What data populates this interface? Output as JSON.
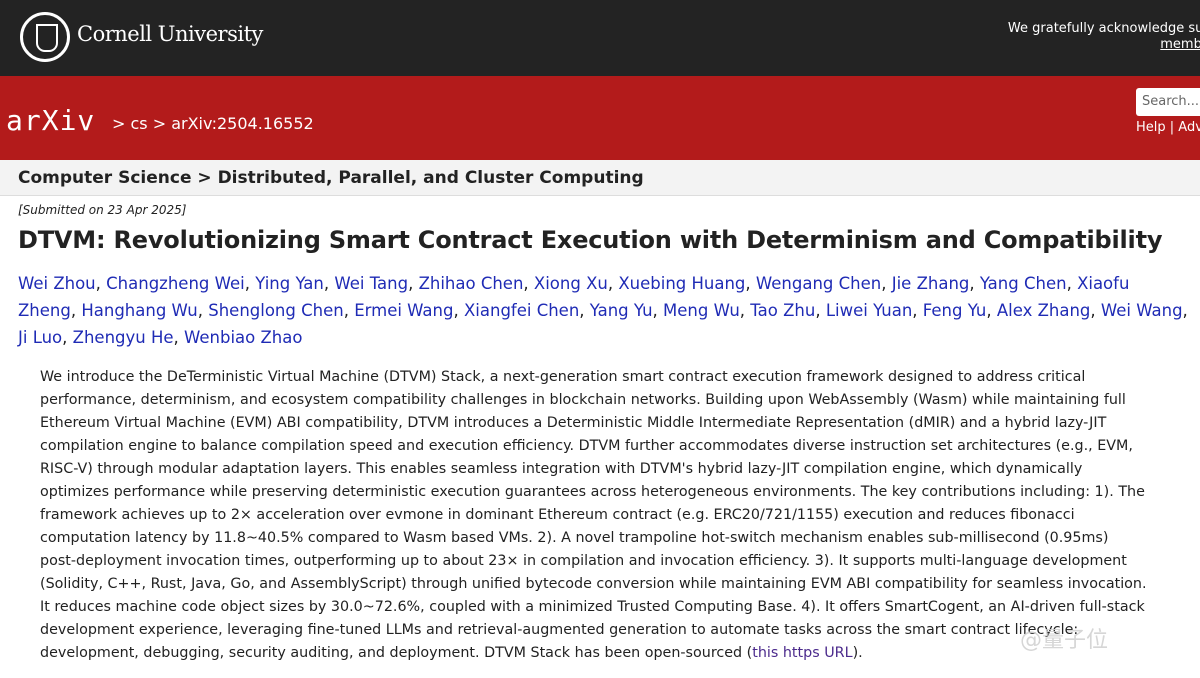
{
  "header": {
    "university": "Cornell University",
    "ack_line1": "We gratefully acknowledge support fro",
    "ack_link": "member institu"
  },
  "nav": {
    "logo": "arXiv",
    "breadcrumb": "> cs > arXiv:2504.16552",
    "search_placeholder": "Search...",
    "help": "Help | Adv"
  },
  "subject": "Computer Science > Distributed, Parallel, and Cluster Computing",
  "submitted": "[Submitted on 23 Apr 2025]",
  "title": "DTVM: Revolutionizing Smart Contract Execution with Determinism and Compatibility",
  "authors": [
    "Wei Zhou",
    "Changzheng Wei",
    "Ying Yan",
    "Wei Tang",
    "Zhihao Chen",
    "Xiong Xu",
    "Xuebing Huang",
    "Wengang Chen",
    "Jie Zhang",
    "Yang Chen",
    "Xiaofu Zheng",
    "Hanghang Wu",
    "Shenglong Chen",
    "Ermei Wang",
    "Xiangfei Chen",
    "Yang Yu",
    "Meng Wu",
    "Tao Zhu",
    "Liwei Yuan",
    "Feng Yu",
    "Alex Zhang",
    "Wei Wang",
    "Ji Luo",
    "Zhengyu He",
    "Wenbiao Zhao"
  ],
  "abstract_lines": [
    "We introduce the DeTerministic Virtual Machine (DTVM) Stack, a next-generation smart contract execution framework designed to address critical",
    "performance, determinism, and ecosystem compatibility challenges in blockchain networks. Building upon WebAssembly (Wasm) while maintaining full",
    "Ethereum Virtual Machine (EVM) ABI compatibility, DTVM introduces a Deterministic Middle Intermediate Representation (dMIR) and a hybrid lazy-JIT",
    "compilation engine to balance compilation speed and execution efficiency. DTVM further accommodates diverse instruction set architectures (e.g., EVM,",
    "RISC-V) through modular adaptation layers. This enables seamless integration with DTVM's hybrid lazy-JIT compilation engine, which dynamically",
    "optimizes performance while preserving deterministic execution guarantees across heterogeneous environments. The key contributions including: 1). The",
    "framework achieves up to 2× acceleration over evmone in dominant Ethereum contract (e.g. ERC20/721/1155) execution and reduces fibonacci",
    "computation latency by 11.8~40.5% compared to Wasm based VMs. 2). A novel trampoline hot-switch mechanism enables sub-millisecond (0.95ms)",
    "post-deployment invocation times, outperforming up to about 23× in compilation and invocation efficiency. 3). It supports multi-language development",
    "(Solidity, C++, Rust, Java, Go, and AssemblyScript) through unified bytecode conversion while maintaining EVM ABI compatibility for seamless invocation.",
    "It reduces machine code object sizes by 30.0~72.6%, coupled with a minimized Trusted Computing Base. 4). It offers SmartCogent, an AI-driven full-stack",
    "development experience, leveraging fine-tuned LLMs and retrieval-augmented generation to automate tasks across the smart contract lifecycle:"
  ],
  "abstract_last": "development, debugging, security auditing, and deployment. DTVM Stack has been open-sourced (",
  "abstract_link": "this https URL",
  "abstract_end": ").",
  "watermark": "@量子位"
}
